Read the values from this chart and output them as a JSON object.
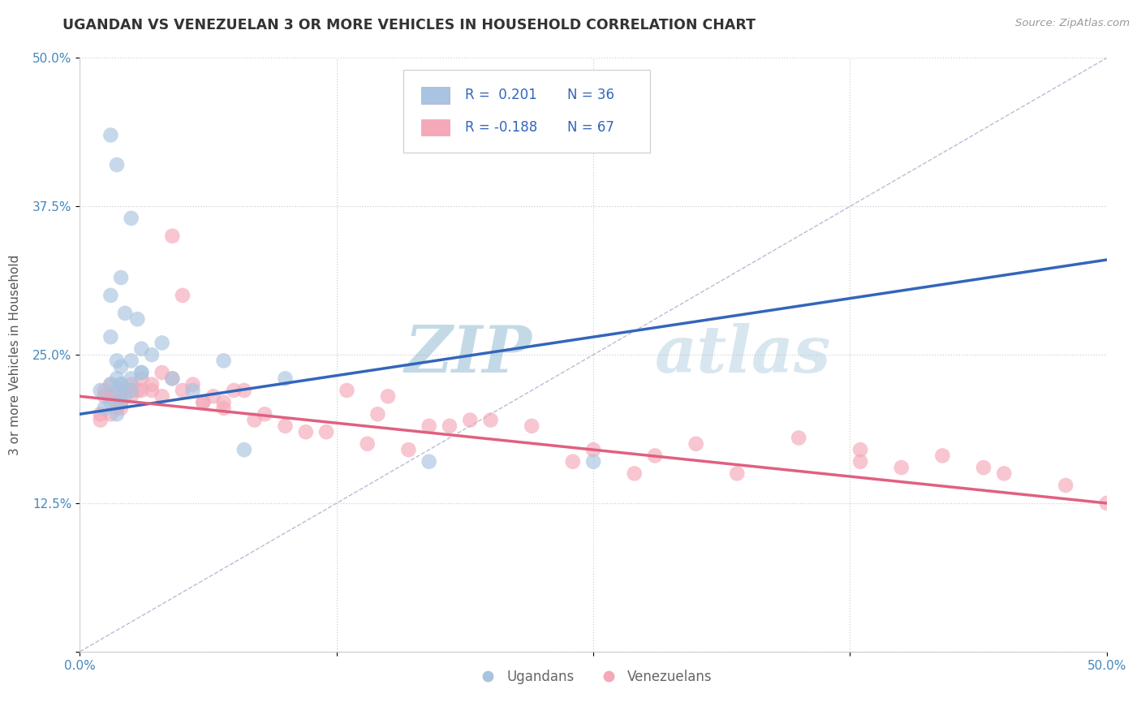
{
  "title": "UGANDAN VS VENEZUELAN 3 OR MORE VEHICLES IN HOUSEHOLD CORRELATION CHART",
  "source_text": "Source: ZipAtlas.com",
  "ylabel": "3 or more Vehicles in Household",
  "xlim": [
    0.0,
    50.0
  ],
  "ylim": [
    0.0,
    50.0
  ],
  "xticks": [
    0.0,
    12.5,
    25.0,
    37.5,
    50.0
  ],
  "yticks": [
    0.0,
    12.5,
    25.0,
    37.5,
    50.0
  ],
  "xticklabels": [
    "0.0%",
    "",
    "",
    "",
    "50.0%"
  ],
  "yticklabels": [
    "",
    "12.5%",
    "25.0%",
    "37.5%",
    "50.0%"
  ],
  "ugandan_color": "#a8c4e0",
  "venezuelan_color": "#f4a8b8",
  "ugandan_line_color": "#3366bb",
  "venezuelan_line_color": "#e06080",
  "ref_line_color": "#aaaacc",
  "ugandan_R": 0.201,
  "ugandan_N": 36,
  "venezuelan_R": -0.188,
  "venezuelan_N": 67,
  "watermark_zip_color": "#8ab0cc",
  "watermark_atlas_color": "#aabbd0",
  "background_color": "#ffffff",
  "ugandan_x": [
    1.5,
    1.8,
    2.0,
    2.5,
    1.2,
    1.8,
    2.2,
    1.5,
    2.0,
    1.0,
    1.5,
    1.8,
    2.5,
    2.0,
    1.5,
    2.2,
    2.8,
    1.8,
    2.0,
    1.5,
    3.0,
    2.5,
    3.5,
    4.0,
    2.0,
    1.8,
    2.5,
    3.0,
    4.5,
    5.5,
    7.0,
    10.0,
    17.0,
    25.0,
    3.0,
    8.0
  ],
  "ugandan_y": [
    21.0,
    22.0,
    22.5,
    23.0,
    20.5,
    20.0,
    21.5,
    22.5,
    21.0,
    22.0,
    43.5,
    41.0,
    36.5,
    31.5,
    30.0,
    28.5,
    28.0,
    24.5,
    24.0,
    26.5,
    25.5,
    24.5,
    25.0,
    26.0,
    22.5,
    23.0,
    22.0,
    23.5,
    23.0,
    22.0,
    24.5,
    23.0,
    16.0,
    16.0,
    23.5,
    17.0
  ],
  "venezuelan_x": [
    1.0,
    1.5,
    2.0,
    1.2,
    1.8,
    2.5,
    1.5,
    2.0,
    2.8,
    1.0,
    1.5,
    2.2,
    1.8,
    2.0,
    1.5,
    1.2,
    3.0,
    2.5,
    3.5,
    2.0,
    4.0,
    3.0,
    2.5,
    4.5,
    3.5,
    5.0,
    6.0,
    5.5,
    4.0,
    6.5,
    7.0,
    8.0,
    5.0,
    7.5,
    4.5,
    6.0,
    9.0,
    8.5,
    7.0,
    10.0,
    12.0,
    14.0,
    13.0,
    15.0,
    11.0,
    16.0,
    18.0,
    20.0,
    22.0,
    14.5,
    17.0,
    19.0,
    25.0,
    28.0,
    30.0,
    35.0,
    38.0,
    40.0,
    45.0,
    48.0,
    32.0,
    24.0,
    42.0,
    44.0,
    27.0,
    38.0,
    50.0
  ],
  "venezuelan_y": [
    19.5,
    20.0,
    21.0,
    21.5,
    20.5,
    22.0,
    22.5,
    21.0,
    22.0,
    20.0,
    21.5,
    22.0,
    21.0,
    20.5,
    21.5,
    22.0,
    23.0,
    22.5,
    22.0,
    22.0,
    21.5,
    22.0,
    21.5,
    23.0,
    22.5,
    22.0,
    21.0,
    22.5,
    23.5,
    21.5,
    21.0,
    22.0,
    30.0,
    22.0,
    35.0,
    21.0,
    20.0,
    19.5,
    20.5,
    19.0,
    18.5,
    17.5,
    22.0,
    21.5,
    18.5,
    17.0,
    19.0,
    19.5,
    19.0,
    20.0,
    19.0,
    19.5,
    17.0,
    16.5,
    17.5,
    18.0,
    17.0,
    15.5,
    15.0,
    14.0,
    15.0,
    16.0,
    16.5,
    15.5,
    15.0,
    16.0,
    12.5
  ]
}
